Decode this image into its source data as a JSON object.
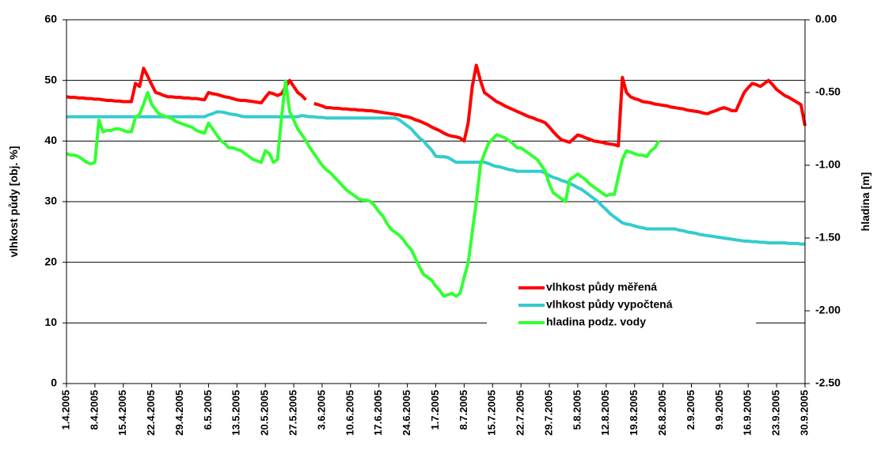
{
  "chart_data": {
    "type": "line",
    "ylabel": "vlhkost půdy [obj. %]",
    "y2label": "hladina [m]",
    "ylim": [
      0,
      60
    ],
    "yticks": [
      0,
      10,
      20,
      30,
      40,
      50,
      60
    ],
    "y2lim": [
      -2.5,
      0
    ],
    "y2ticks": [
      {
        "value": 0,
        "label": "0.00"
      },
      {
        "value": -0.5,
        "label": "-0.50"
      },
      {
        "value": -1,
        "label": "-1.00"
      },
      {
        "value": -1.5,
        "label": "-1.50"
      },
      {
        "value": -2,
        "label": "-2.00"
      },
      {
        "value": -2.5,
        "label": "-2.50"
      }
    ],
    "grid": true,
    "legend": "lower right",
    "x": [
      "1.4.2005",
      null,
      null,
      null,
      null,
      null,
      null,
      "8.4.2005",
      null,
      null,
      null,
      null,
      null,
      null,
      "15.4.2005",
      null,
      null,
      null,
      null,
      null,
      null,
      "22.4.2005",
      null,
      null,
      null,
      null,
      null,
      null,
      "29.4.2005",
      null,
      null,
      null,
      null,
      null,
      null,
      "6.5.2005",
      null,
      null,
      null,
      null,
      null,
      null,
      "13.5.2005",
      null,
      null,
      null,
      null,
      null,
      null,
      "20.5.2005",
      null,
      null,
      null,
      null,
      null,
      null,
      "27.5.2005",
      null,
      null,
      null,
      null,
      null,
      null,
      "3.6.2005",
      null,
      null,
      null,
      null,
      null,
      null,
      "10.6.2005",
      null,
      null,
      null,
      null,
      null,
      null,
      "17.6.2005",
      null,
      null,
      null,
      null,
      null,
      null,
      "24.6.2005",
      null,
      null,
      null,
      null,
      null,
      null,
      "1.7.2005",
      null,
      null,
      null,
      null,
      null,
      null,
      "8.7.2005",
      null,
      null,
      null,
      null,
      null,
      null,
      "15.7.2005",
      null,
      null,
      null,
      null,
      null,
      null,
      "22.7.2005",
      null,
      null,
      null,
      null,
      null,
      null,
      "29.7.2005",
      null,
      null,
      null,
      null,
      null,
      null,
      "5.8.2005",
      null,
      null,
      null,
      null,
      null,
      null,
      "12.8.2005",
      null,
      null,
      null,
      null,
      null,
      null,
      "19.8.2005",
      null,
      null,
      null,
      null,
      null,
      null,
      "26.8.2005",
      null,
      null,
      null,
      null,
      null,
      null,
      "2.9.2005",
      null,
      null,
      null,
      null,
      null,
      null,
      "9.9.2005",
      null,
      null,
      null,
      null,
      null,
      null,
      "16.9.2005",
      null,
      null,
      null,
      null,
      null,
      null,
      "23.9.2005",
      null,
      null,
      null,
      null,
      null,
      null,
      "30.9.2005"
    ],
    "series": [
      {
        "name": "vlhkost půdy měřená",
        "color": "#ff0000",
        "axis": "y",
        "values": [
          47.3,
          47.2,
          47.2,
          47.1,
          47.1,
          47.0,
          47.0,
          46.9,
          46.9,
          46.8,
          46.7,
          46.7,
          46.6,
          46.6,
          46.5,
          46.5,
          46.5,
          49.5,
          49,
          52,
          50.7,
          49.3,
          48,
          47.8,
          47.5,
          47.3,
          47.3,
          47.2,
          47.2,
          47.1,
          47.1,
          47,
          47,
          46.9,
          46.8,
          48,
          47.8,
          47.7,
          47.5,
          47.3,
          47.2,
          47,
          46.8,
          46.7,
          46.7,
          46.6,
          46.5,
          46.4,
          46.3,
          47.2,
          48,
          47.8,
          47.5,
          47.8,
          48.9,
          50,
          49,
          48,
          47.5,
          46.8,
          null,
          46.2,
          46,
          45.8,
          45.5,
          45.5,
          45.4,
          45.4,
          45.3,
          45.3,
          45.2,
          45.2,
          45.1,
          45.1,
          45,
          45,
          44.9,
          44.8,
          44.7,
          44.6,
          44.5,
          44.4,
          44.3,
          44.1,
          44,
          43.8,
          43.5,
          43.3,
          43,
          42.7,
          42.3,
          42,
          41.7,
          41.3,
          41,
          40.8,
          40.7,
          40.5,
          40,
          43,
          49,
          52.5,
          50,
          48,
          47.5,
          47,
          46.5,
          46.2,
          45.8,
          45.5,
          45.2,
          44.9,
          44.6,
          44.3,
          44,
          43.8,
          43.5,
          43.3,
          43,
          42.3,
          41.5,
          40.8,
          40.2,
          40,
          39.8,
          40.4,
          41,
          40.8,
          40.5,
          40.3,
          40,
          39.9,
          39.8,
          39.6,
          39.5,
          39.4,
          39.2,
          50.5,
          48,
          47.3,
          47,
          46.8,
          46.5,
          46.4,
          46.3,
          46.1,
          46,
          45.9,
          45.8,
          45.6,
          45.5,
          45.4,
          45.3,
          45.1,
          45,
          44.9,
          44.8,
          44.6,
          44.5,
          44.8,
          45,
          45.3,
          45.5,
          45.3,
          45,
          45,
          46.5,
          48,
          48.8,
          49.5,
          49.3,
          49,
          49.5,
          50,
          49.3,
          48.5,
          48,
          47.5,
          47.2,
          46.8,
          46.4,
          46,
          42.5
        ]
      },
      {
        "name": "vlhkost půdy vypočtená",
        "color": "#33cccc",
        "axis": "y",
        "values": [
          44,
          44,
          44,
          44,
          44,
          44,
          44,
          44,
          44,
          44,
          44,
          44,
          44,
          44,
          44,
          44,
          44,
          44,
          44,
          44,
          44,
          44,
          44,
          44,
          44,
          44,
          44,
          44,
          44,
          44,
          44,
          44,
          44,
          44,
          44,
          44.3,
          44.5,
          44.8,
          44.8,
          44.7,
          44.5,
          44.4,
          44.3,
          44.1,
          44,
          44,
          44,
          44,
          44,
          44,
          44,
          44,
          44,
          44,
          44,
          44,
          44,
          44,
          44.2,
          44.1,
          44,
          44,
          43.9,
          43.9,
          43.8,
          43.8,
          43.8,
          43.8,
          43.8,
          43.8,
          43.8,
          43.8,
          43.8,
          43.8,
          43.8,
          43.8,
          43.8,
          43.8,
          43.8,
          43.8,
          43.8,
          43.8,
          43.5,
          43,
          42.5,
          42,
          41.2,
          40.5,
          40,
          39.2,
          38.5,
          37.5,
          37.4,
          37.4,
          37.3,
          36.9,
          36.5,
          36.5,
          36.5,
          36.5,
          36.5,
          36.5,
          36.5,
          36.5,
          36.3,
          36,
          35.8,
          35.7,
          35.5,
          35.3,
          35.2,
          35,
          35,
          35,
          35,
          35,
          35,
          35,
          34.7,
          34.3,
          34,
          33.8,
          33.5,
          33.3,
          33,
          32.7,
          32.3,
          32,
          31.5,
          31,
          30.5,
          30,
          29.3,
          28.7,
          28,
          27.5,
          27,
          26.5,
          26.3,
          26.2,
          26,
          25.8,
          25.7,
          25.5,
          25.5,
          25.5,
          25.5,
          25.5,
          25.5,
          25.5,
          25.5,
          25.3,
          25.2,
          25,
          24.9,
          24.8,
          24.6,
          24.5,
          24.4,
          24.3,
          24.2,
          24.1,
          24,
          23.9,
          23.8,
          23.7,
          23.6,
          23.5,
          23.5,
          23.4,
          23.4,
          23.3,
          23.3,
          23.2,
          23.2,
          23.2,
          23.2,
          23.2,
          23.1,
          23.1,
          23.1,
          23,
          23
        ]
      },
      {
        "name": "hladina podz. vody",
        "color": "#33ff33",
        "axis": "y2",
        "values": [
          -0.92,
          -0.93,
          -0.93,
          -0.94,
          -0.96,
          -0.98,
          -0.99,
          -0.98,
          -0.69,
          -0.77,
          -0.76,
          -0.76,
          -0.75,
          -0.75,
          -0.76,
          -0.77,
          -0.77,
          -0.67,
          -0.65,
          -0.58,
          -0.5,
          -0.58,
          -0.62,
          -0.65,
          -0.66,
          -0.67,
          -0.68,
          -0.7,
          -0.71,
          -0.72,
          -0.73,
          -0.74,
          -0.76,
          -0.77,
          -0.78,
          -0.71,
          -0.75,
          -0.79,
          -0.83,
          -0.85,
          -0.88,
          -0.88,
          -0.89,
          -0.9,
          -0.92,
          -0.94,
          -0.96,
          -0.97,
          -0.98,
          -0.9,
          -0.92,
          -0.98,
          -0.96,
          -0.67,
          -0.42,
          -0.63,
          -0.69,
          -0.75,
          -0.79,
          -0.83,
          -0.88,
          -0.92,
          -0.96,
          -1.0,
          -1.03,
          -1.05,
          -1.08,
          -1.11,
          -1.14,
          -1.17,
          -1.19,
          -1.21,
          -1.23,
          -1.24,
          -1.24,
          -1.25,
          -1.28,
          -1.32,
          -1.35,
          -1.4,
          -1.44,
          -1.46,
          -1.48,
          -1.51,
          -1.55,
          -1.58,
          -1.64,
          -1.7,
          -1.75,
          -1.77,
          -1.79,
          -1.83,
          -1.86,
          -1.9,
          -1.89,
          -1.88,
          -1.9,
          -1.88,
          -1.77,
          -1.67,
          -1.46,
          -1.25,
          -1.0,
          -0.92,
          -0.85,
          -0.82,
          -0.79,
          -0.8,
          -0.81,
          -0.83,
          -0.85,
          -0.88,
          -0.88,
          -0.9,
          -0.92,
          -0.94,
          -0.96,
          -1.0,
          -1.04,
          -1.13,
          -1.19,
          -1.21,
          -1.23,
          -1.25,
          -1.1,
          -1.08,
          -1.06,
          -1.08,
          -1.1,
          -1.13,
          -1.15,
          -1.17,
          -1.19,
          -1.21,
          -1.2,
          -1.2,
          -1.08,
          -0.96,
          -0.9,
          -0.91,
          -0.92,
          -0.93,
          -0.93,
          -0.94,
          -0.9,
          -0.88,
          -0.83,
          null,
          null,
          null,
          null,
          null,
          null,
          null,
          null,
          null,
          null,
          null,
          null,
          null,
          null,
          null,
          null,
          null,
          null,
          null,
          null,
          null,
          null,
          null,
          null,
          null,
          null,
          null,
          null,
          null,
          null,
          null,
          null,
          null,
          null,
          null,
          null
        ]
      }
    ]
  }
}
